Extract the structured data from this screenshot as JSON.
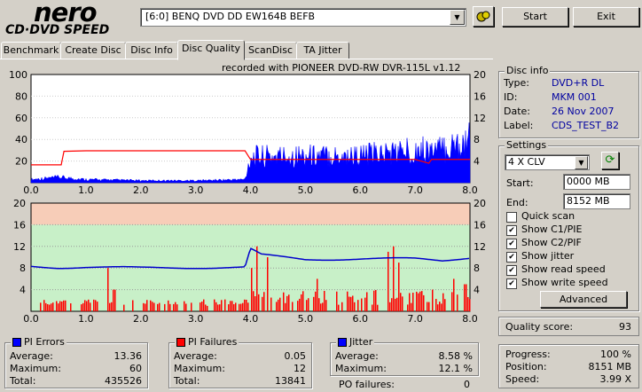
{
  "app": {
    "logo_main": "nero",
    "logo_sub": "CD·DVD SPEED"
  },
  "toolbar": {
    "drive": "[6:0]  BENQ DVD DD EW164B BEFB",
    "start": "Start",
    "exit": "Exit"
  },
  "tabs": [
    "Benchmark",
    "Create Disc",
    "Disc Info",
    "Disc Quality",
    "ScanDisc",
    "TA Jitter"
  ],
  "active_tab": "Disc Quality",
  "chart_top": {
    "caption": "recorded with PIONEER DVD-RW  DVR-115L v1.12",
    "y_left_ticks": [
      "100",
      "80",
      "60",
      "40",
      "20"
    ],
    "y_right_ticks": [
      "20",
      "16",
      "12",
      "8",
      "4"
    ],
    "x_ticks": [
      "0.0",
      "1.0",
      "2.0",
      "3.0",
      "4.0",
      "5.0",
      "6.0",
      "7.0",
      "8.0"
    ]
  },
  "chart_bottom": {
    "y_left_ticks": [
      "20",
      "16",
      "12",
      "8",
      "4"
    ],
    "y_right_ticks": [
      "20",
      "16",
      "12",
      "8",
      "4"
    ],
    "x_ticks": [
      "0.0",
      "1.0",
      "2.0",
      "3.0",
      "4.0",
      "5.0",
      "6.0",
      "7.0",
      "8.0"
    ]
  },
  "chart_data": [
    {
      "type": "area",
      "name": "PI Errors",
      "x_range": [
        0,
        8
      ],
      "ylim": [
        0,
        100
      ],
      "series": [
        {
          "name": "PI Errors",
          "x": [
            0,
            0.5,
            1,
            2,
            3,
            3.9,
            4,
            5,
            6,
            7,
            7.5,
            8
          ],
          "values": [
            3,
            5,
            3,
            2,
            2,
            3,
            24,
            25,
            25,
            30,
            30,
            40
          ]
        },
        {
          "name": "Read speed",
          "x": [
            0,
            0.55,
            0.6,
            1,
            2,
            3,
            3.9,
            4.0,
            5,
            6,
            7,
            7.25,
            7.3,
            8
          ],
          "values": [
            3.3,
            3.3,
            5.8,
            5.9,
            5.9,
            5.9,
            5.9,
            4.3,
            4.3,
            4.3,
            4.3,
            3.6,
            4.3,
            4.3
          ]
        }
      ]
    },
    {
      "type": "bar",
      "name": "PI Failures",
      "x_range": [
        0,
        8
      ],
      "ylim": [
        0,
        20
      ],
      "series": [
        {
          "name": "PI Failures",
          "x": [
            0.3,
            0.6,
            1.4,
            1.5,
            2.5,
            3.2,
            4.0,
            4.1,
            4.3,
            5.2,
            6.5,
            6.6,
            6.7,
            7.3,
            7.7,
            7.9
          ],
          "values": [
            1,
            2,
            8,
            4,
            2,
            1,
            8,
            12,
            10,
            6,
            11,
            12,
            9,
            4,
            6,
            5
          ]
        },
        {
          "name": "Jitter",
          "x": [
            0,
            0.5,
            1,
            2,
            3,
            3.9,
            4.0,
            4.2,
            5,
            6,
            7,
            7.5,
            8
          ],
          "values": [
            8.3,
            8.1,
            8.2,
            8.0,
            8.1,
            8.1,
            11.5,
            10.4,
            9.6,
            9.7,
            9.7,
            9.4,
            10.0
          ]
        }
      ]
    }
  ],
  "disc_info": {
    "title": "Disc info",
    "type_label": "Type:",
    "type": "DVD+R DL",
    "id_label": "ID:",
    "id": "MKM 001",
    "date_label": "Date:",
    "date": "26 Nov 2007",
    "label_label": "Label:",
    "label": "CDS_TEST_B2"
  },
  "settings": {
    "title": "Settings",
    "speed": "4 X CLV",
    "start_label": "Start:",
    "start": "0000 MB",
    "end_label": "End:",
    "end": "8152 MB",
    "checks": [
      {
        "label": "Quick scan",
        "checked": false
      },
      {
        "label": "Show C1/PIE",
        "checked": true
      },
      {
        "label": "Show C2/PIF",
        "checked": true
      },
      {
        "label": "Show jitter",
        "checked": true
      },
      {
        "label": "Show read speed",
        "checked": true
      },
      {
        "label": "Show write speed",
        "checked": true
      }
    ],
    "advanced": "Advanced"
  },
  "quality": {
    "label": "Quality score:",
    "value": "93"
  },
  "progress": {
    "progress_label": "Progress:",
    "progress": "100 %",
    "position_label": "Position:",
    "position": "8151 MB",
    "speed_label": "Speed:",
    "speed": "3.99 X"
  },
  "pi_errors": {
    "title": "PI Errors",
    "avg_label": "Average:",
    "avg": "13.36",
    "max_label": "Maximum:",
    "max": "60",
    "total_label": "Total:",
    "total": "435526",
    "color": "#0000ff"
  },
  "pi_failures": {
    "title": "PI Failures",
    "avg_label": "Average:",
    "avg": "0.05",
    "max_label": "Maximum:",
    "max": "12",
    "total_label": "Total:",
    "total": "13841",
    "color": "#ff0000"
  },
  "jitter": {
    "title": "Jitter",
    "avg_label": "Average:",
    "avg": "8.58 %",
    "max_label": "Maximum:",
    "max": "12.1 %",
    "po_label": "PO failures:",
    "po": "0",
    "color": "#0000ff"
  }
}
